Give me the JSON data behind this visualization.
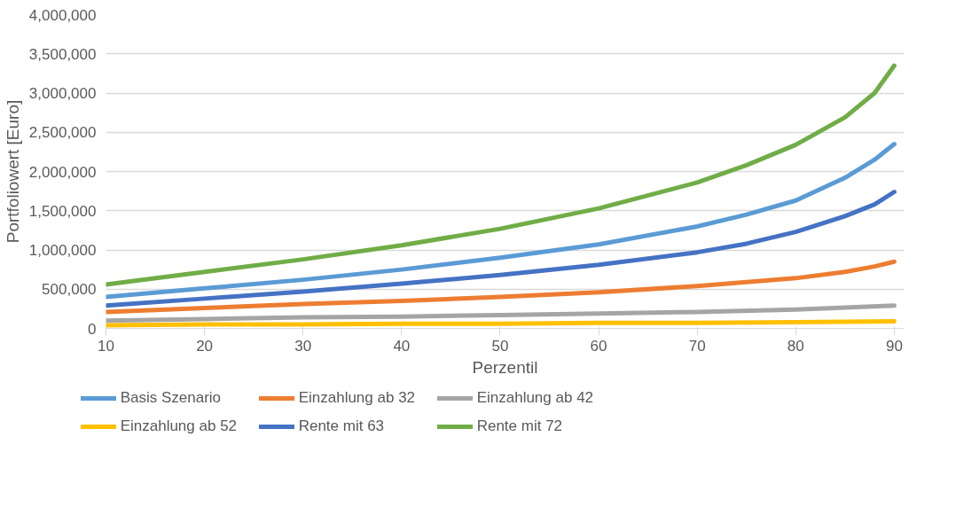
{
  "chart_data": {
    "type": "line",
    "xlabel": "Perzentil",
    "ylabel": "Portfoliowert [Euro]",
    "xlim": [
      10,
      91
    ],
    "xticks": [
      10,
      20,
      30,
      40,
      50,
      60,
      70,
      80,
      90
    ],
    "ylim": [
      0,
      4000000
    ],
    "yticks": [
      {
        "value": 0,
        "label": "0"
      },
      {
        "value": 500000,
        "label": "500,000"
      },
      {
        "value": 1000000,
        "label": "1,000,000"
      },
      {
        "value": 1500000,
        "label": "1,500,000"
      },
      {
        "value": 2000000,
        "label": "2,000,000"
      },
      {
        "value": 2500000,
        "label": "2,500,000"
      },
      {
        "value": 3000000,
        "label": "3,000,000"
      },
      {
        "value": 3500000,
        "label": "3,500,000"
      },
      {
        "value": 4000000,
        "label": "4,000,000"
      }
    ],
    "grid": "y",
    "legend": "bottom",
    "marker": "none",
    "line_style": "solid",
    "series": [
      {
        "name": "Basis Szenario",
        "color": "#5b9bd5",
        "x": [
          10,
          20,
          30,
          40,
          50,
          60,
          70,
          75,
          80,
          85,
          88,
          90
        ],
        "values": [
          400000,
          510000,
          620000,
          750000,
          900000,
          1070000,
          1300000,
          1450000,
          1630000,
          1920000,
          2150000,
          2350000
        ]
      },
      {
        "name": "Einzahlung ab 32",
        "color": "#ed7d31",
        "x": [
          10,
          20,
          30,
          40,
          50,
          60,
          70,
          75,
          80,
          85,
          88,
          90
        ],
        "values": [
          210000,
          260000,
          310000,
          350000,
          400000,
          460000,
          540000,
          590000,
          640000,
          720000,
          790000,
          850000
        ]
      },
      {
        "name": "Einzahlung ab 42",
        "color": "#a5a5a5",
        "x": [
          10,
          20,
          30,
          40,
          50,
          60,
          70,
          80,
          90
        ],
        "values": [
          100000,
          120000,
          140000,
          150000,
          170000,
          190000,
          210000,
          240000,
          290000
        ]
      },
      {
        "name": "Einzahlung ab 52",
        "color": "#ffc000",
        "x": [
          10,
          20,
          30,
          40,
          50,
          60,
          70,
          80,
          90
        ],
        "values": [
          40000,
          50000,
          50000,
          60000,
          60000,
          70000,
          70000,
          80000,
          90000
        ]
      },
      {
        "name": "Rente mit 63",
        "color": "#4472c4",
        "x": [
          10,
          20,
          30,
          40,
          50,
          60,
          70,
          75,
          80,
          85,
          88,
          90
        ],
        "values": [
          290000,
          380000,
          470000,
          570000,
          680000,
          810000,
          970000,
          1080000,
          1230000,
          1430000,
          1580000,
          1740000
        ]
      },
      {
        "name": "Rente mit 72",
        "color": "#70ad47",
        "x": [
          10,
          20,
          30,
          40,
          50,
          60,
          70,
          75,
          80,
          85,
          88,
          90
        ],
        "values": [
          560000,
          720000,
          880000,
          1060000,
          1270000,
          1530000,
          1860000,
          2080000,
          2340000,
          2690000,
          3000000,
          3350000
        ]
      }
    ]
  }
}
